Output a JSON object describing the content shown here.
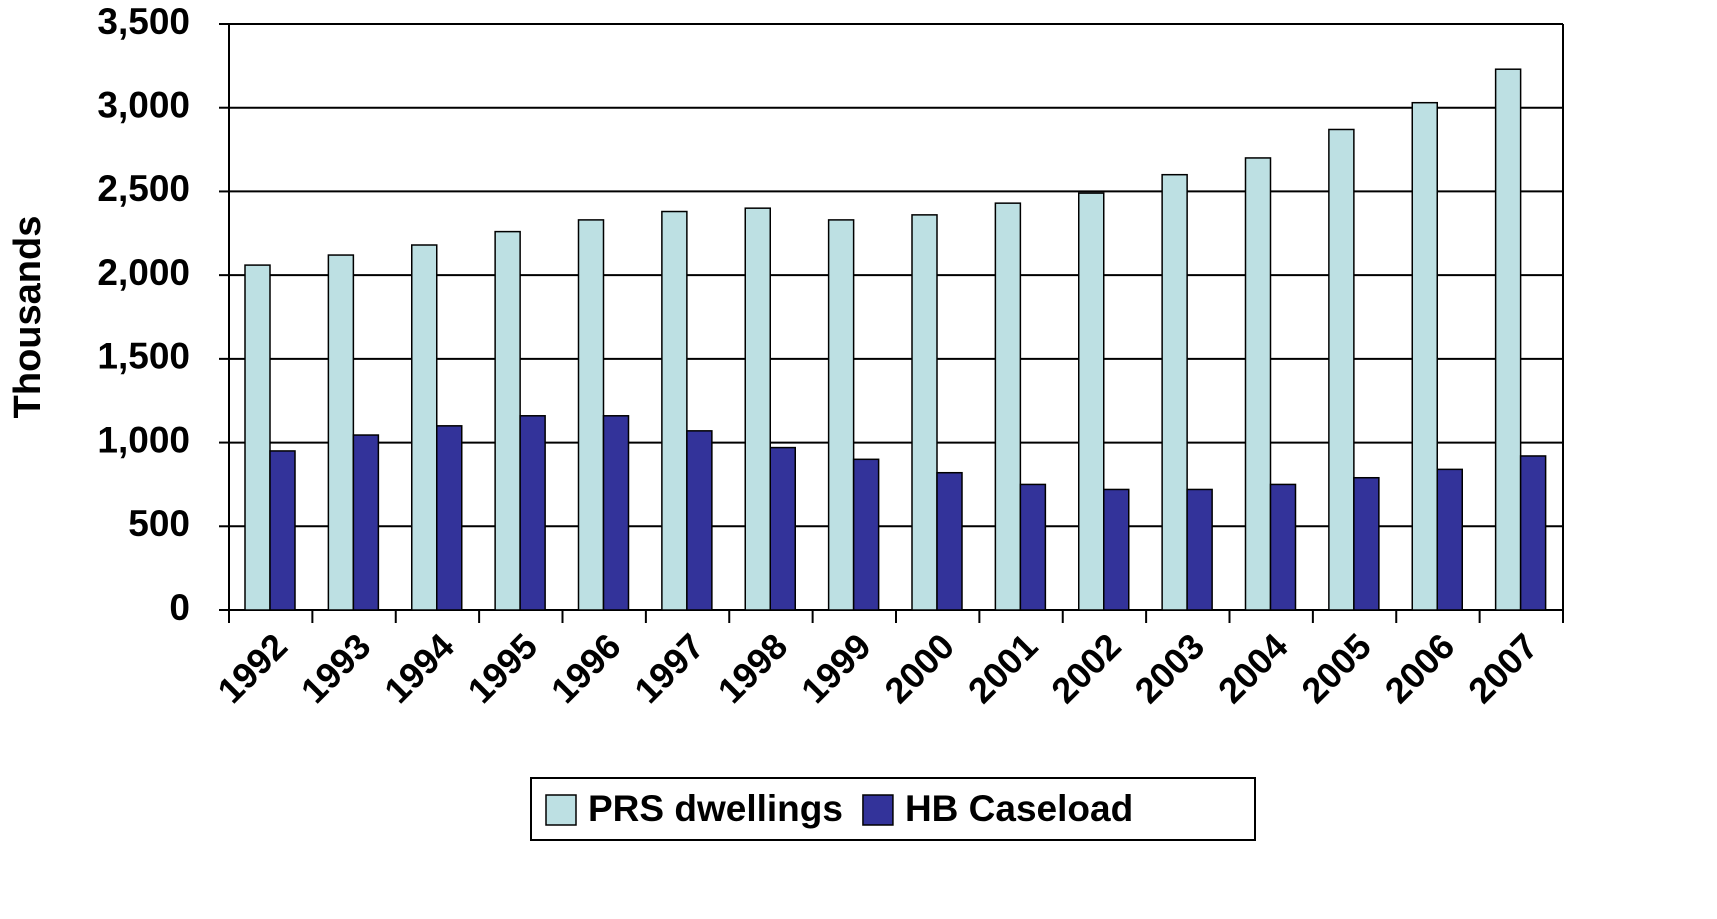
{
  "chart_data": {
    "type": "bar",
    "y_axis_label": "Thousands",
    "categories": [
      "1992",
      "1993",
      "1994",
      "1995",
      "1996",
      "1997",
      "1998",
      "1999",
      "2000",
      "2001",
      "2002",
      "2003",
      "2004",
      "2005",
      "2006",
      "2007"
    ],
    "series": [
      {
        "name": "PRS dwellings",
        "color": "#bde0e3",
        "values": [
          2060,
          2120,
          2180,
          2260,
          2330,
          2380,
          2400,
          2330,
          2360,
          2430,
          2490,
          2600,
          2700,
          2870,
          3030,
          3230
        ]
      },
      {
        "name": "HB Caseload",
        "color": "#33339a",
        "values": [
          950,
          1045,
          1100,
          1160,
          1160,
          1070,
          970,
          900,
          820,
          750,
          720,
          720,
          750,
          790,
          840,
          920
        ]
      }
    ],
    "ylim": [
      0,
      3500
    ],
    "yticks": [
      0,
      500,
      {
        "value": 1000,
        "label": "1,000"
      },
      {
        "value": 1500,
        "label": "1,500"
      },
      {
        "value": 2000,
        "label": "2,000"
      },
      {
        "value": 2500,
        "label": "2,500"
      },
      {
        "value": 3000,
        "label": "3,000"
      },
      {
        "value": 3500,
        "label": "3,500"
      }
    ],
    "grid": true,
    "legend": "bottom"
  }
}
